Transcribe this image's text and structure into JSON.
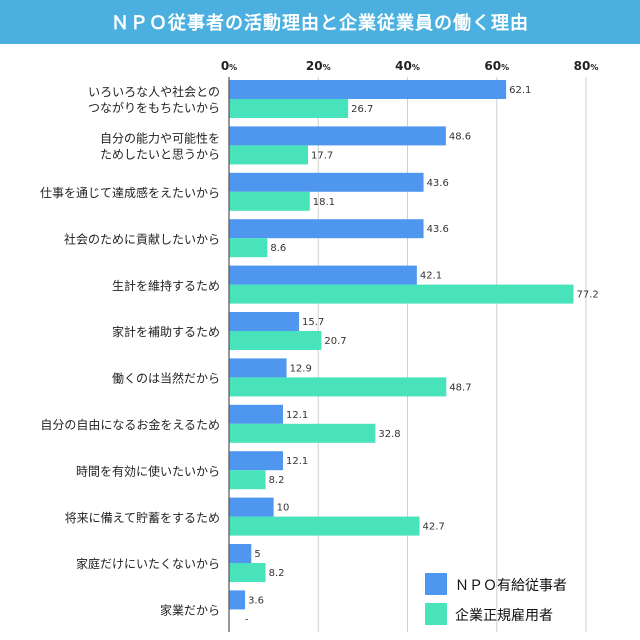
{
  "title": "ＮＰＯ従事者の活動理由と企業従業員の働く理由",
  "chart_data": {
    "type": "bar",
    "orientation": "horizontal",
    "categories": [
      [
        "いろいろな人や社会との",
        "つながりをもちたいから"
      ],
      [
        "自分の能力や可能性を",
        "ためしたいと思うから"
      ],
      [
        "仕事を通じて達成感をえたいから"
      ],
      [
        "社会のために貢献したいから"
      ],
      [
        "生計を維持するため"
      ],
      [
        "家計を補助するため"
      ],
      [
        "働くのは当然だから"
      ],
      [
        "自分の自由になるお金をえるため"
      ],
      [
        "時間を有効に使いたいから"
      ],
      [
        "将来に備えて貯蓄をするため"
      ],
      [
        "家庭だけにいたくないから"
      ],
      [
        "家業だから"
      ]
    ],
    "series": [
      {
        "name": "ＮＰＯ有給従事者",
        "color": "#4f97ee",
        "values": [
          62.1,
          48.6,
          43.6,
          43.6,
          42.1,
          15.7,
          12.9,
          12.1,
          12.1,
          10,
          5,
          3.6
        ],
        "labels": [
          "62.1",
          "48.6",
          "43.6",
          "43.6",
          "42.1",
          "15.7",
          "12.9",
          "12.1",
          "12.1",
          "10",
          "5",
          "3.6"
        ]
      },
      {
        "name": "企業正規雇用者",
        "color": "#48e2bb",
        "values": [
          26.7,
          17.7,
          18.1,
          8.6,
          77.2,
          20.7,
          48.7,
          32.8,
          8.2,
          42.7,
          8.2,
          null
        ],
        "labels": [
          "26.7",
          "17.7",
          "18.1",
          "8.6",
          "77.2",
          "20.7",
          "48.7",
          "32.8",
          "8.2",
          "42.7",
          "8.2",
          "-"
        ]
      }
    ],
    "xlim": [
      0,
      80
    ],
    "ticks": [
      {
        "num": "0",
        "unit": "%"
      },
      {
        "num": "20",
        "unit": "%"
      },
      {
        "num": "40",
        "unit": "%"
      },
      {
        "num": "60",
        "unit": "%"
      },
      {
        "num": "80",
        "unit": "%"
      }
    ],
    "grid": true,
    "legend_position": "bottom-right"
  }
}
